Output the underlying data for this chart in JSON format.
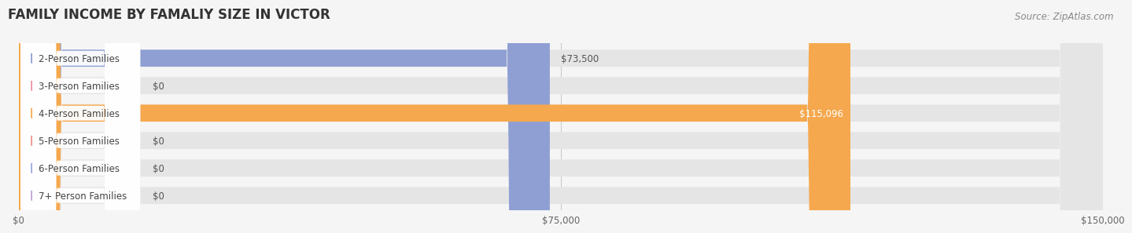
{
  "title": "FAMILY INCOME BY FAMALIY SIZE IN VICTOR",
  "source": "Source: ZipAtlas.com",
  "categories": [
    "2-Person Families",
    "3-Person Families",
    "4-Person Families",
    "5-Person Families",
    "6-Person Families",
    "7+ Person Families"
  ],
  "values": [
    73500,
    0,
    115096,
    0,
    0,
    0
  ],
  "bar_colors": [
    "#8f9fd4",
    "#f090a0",
    "#f5a84e",
    "#f09090",
    "#99aadd",
    "#c0a0d0"
  ],
  "value_labels": [
    "$73,500",
    "$0",
    "$115,096",
    "$0",
    "$0",
    "$0"
  ],
  "value_label_inside": [
    false,
    false,
    true,
    false,
    false,
    false
  ],
  "xlim": [
    0,
    150000
  ],
  "xticks": [
    0,
    75000,
    150000
  ],
  "xticklabels": [
    "$0",
    "$75,000",
    "$150,000"
  ],
  "background_color": "#f5f5f5",
  "bar_background_color": "#e5e5e5",
  "title_fontsize": 12,
  "source_fontsize": 8.5,
  "label_fontsize": 8.5,
  "value_fontsize": 8.5
}
